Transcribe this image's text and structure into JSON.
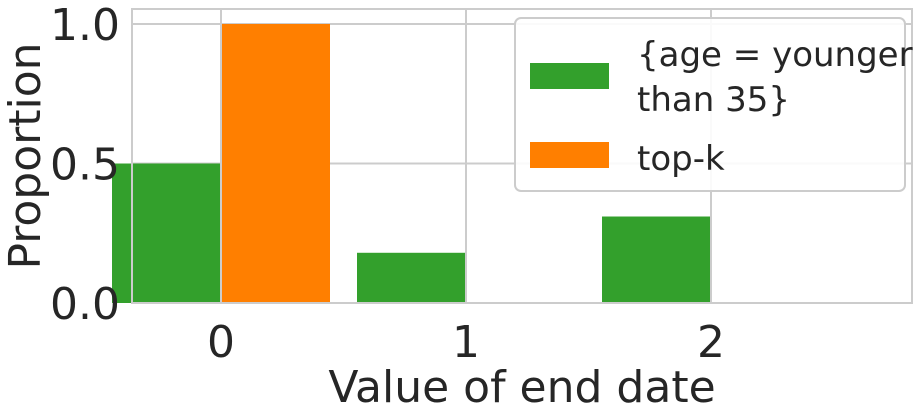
{
  "chart_data": {
    "type": "bar",
    "categories": [
      "0",
      "1",
      "2"
    ],
    "xlabel": "Value of end date",
    "ylabel": "Proportion",
    "ylim": [
      0,
      1.0
    ],
    "yticks": [
      "0.0",
      "0.5",
      "1.0"
    ],
    "grid": true,
    "legend_position": "top-right",
    "series": [
      {
        "name_lines": [
          "{age = younger",
          "than 35}"
        ],
        "color": "#33a02c",
        "values": [
          0.5,
          0.18,
          0.31
        ]
      },
      {
        "name_lines": [
          "top-k"
        ],
        "color": "#ff7f00",
        "values": [
          1.0,
          0.0,
          0.0
        ]
      }
    ]
  }
}
